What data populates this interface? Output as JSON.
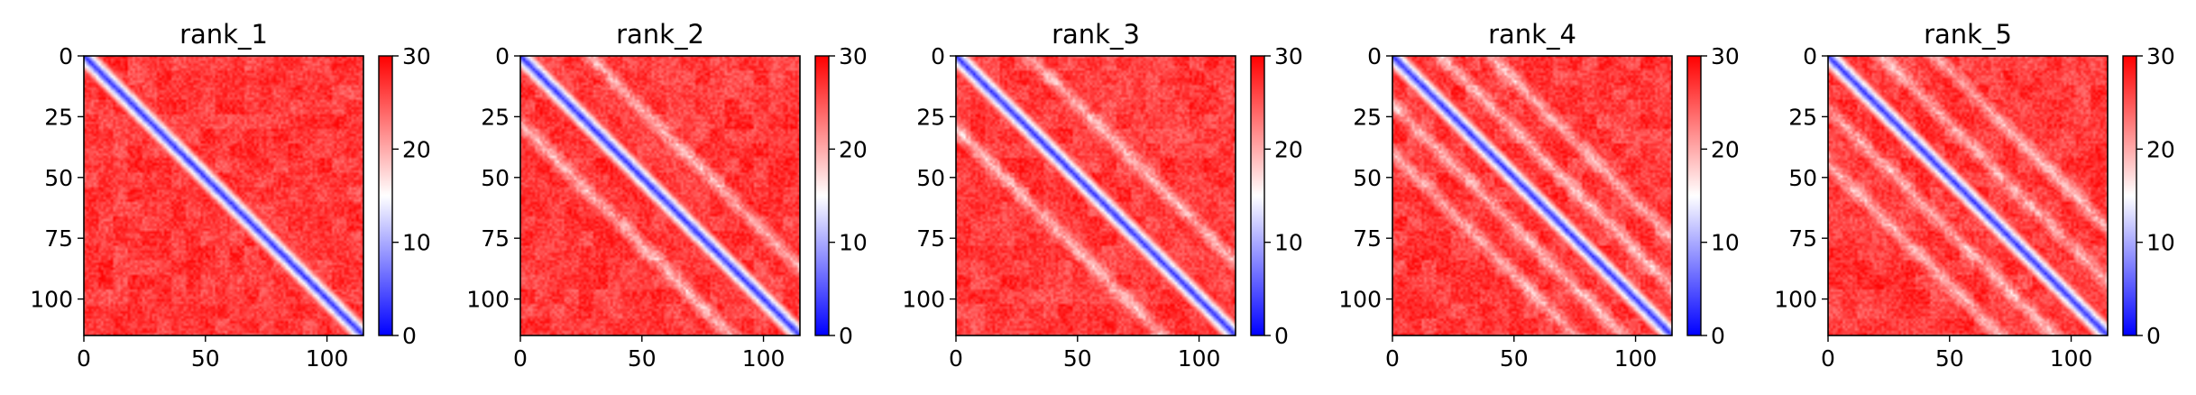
{
  "chart_data": [
    {
      "type": "heatmap",
      "title": "rank_1",
      "matrix_size": 115,
      "x_ticks": [
        0,
        50,
        100
      ],
      "y_ticks": [
        0,
        25,
        50,
        75,
        100
      ],
      "xlim": [
        0,
        115
      ],
      "ylim": [
        115,
        0
      ],
      "colorbar": {
        "min": 0,
        "max": 30,
        "ticks": [
          0,
          10,
          20,
          30
        ],
        "colormap": "bwr"
      },
      "pattern": {
        "diagonal_band_width": 6,
        "offdiag_bands": []
      }
    },
    {
      "type": "heatmap",
      "title": "rank_2",
      "matrix_size": 115,
      "x_ticks": [
        0,
        50,
        100
      ],
      "y_ticks": [
        0,
        25,
        50,
        75,
        100
      ],
      "xlim": [
        0,
        115
      ],
      "ylim": [
        115,
        0
      ],
      "colorbar": {
        "min": 0,
        "max": 30,
        "ticks": [
          0,
          10,
          20,
          30
        ],
        "colormap": "bwr"
      },
      "pattern": {
        "diagonal_band_width": 6,
        "offdiag_bands": [
          28
        ]
      }
    },
    {
      "type": "heatmap",
      "title": "rank_3",
      "matrix_size": 115,
      "x_ticks": [
        0,
        50,
        100
      ],
      "y_ticks": [
        0,
        25,
        50,
        75,
        100
      ],
      "xlim": [
        0,
        115
      ],
      "ylim": [
        115,
        0
      ],
      "colorbar": {
        "min": 0,
        "max": 30,
        "ticks": [
          0,
          10,
          20,
          30
        ],
        "colormap": "bwr"
      },
      "pattern": {
        "diagonal_band_width": 6,
        "offdiag_bands": [
          30
        ]
      }
    },
    {
      "type": "heatmap",
      "title": "rank_4",
      "matrix_size": 115,
      "x_ticks": [
        0,
        50,
        100
      ],
      "y_ticks": [
        0,
        25,
        50,
        75,
        100
      ],
      "xlim": [
        0,
        115
      ],
      "ylim": [
        115,
        0
      ],
      "colorbar": {
        "min": 0,
        "max": 30,
        "ticks": [
          0,
          10,
          20,
          30
        ],
        "colormap": "bwr"
      },
      "pattern": {
        "diagonal_band_width": 6,
        "offdiag_bands": [
          20,
          40
        ]
      }
    },
    {
      "type": "heatmap",
      "title": "rank_5",
      "matrix_size": 115,
      "x_ticks": [
        0,
        50,
        100
      ],
      "y_ticks": [
        0,
        25,
        50,
        75,
        100
      ],
      "xlim": [
        0,
        115
      ],
      "ylim": [
        115,
        0
      ],
      "colorbar": {
        "min": 0,
        "max": 30,
        "ticks": [
          0,
          10,
          20,
          30
        ],
        "colormap": "bwr"
      },
      "pattern": {
        "diagonal_band_width": 6,
        "offdiag_bands": [
          22,
          44
        ]
      }
    }
  ],
  "colors": {
    "low": "#0000ff",
    "mid": "#ffffff",
    "high": "#ff0000",
    "axis": "#000000",
    "text": "#000000"
  }
}
